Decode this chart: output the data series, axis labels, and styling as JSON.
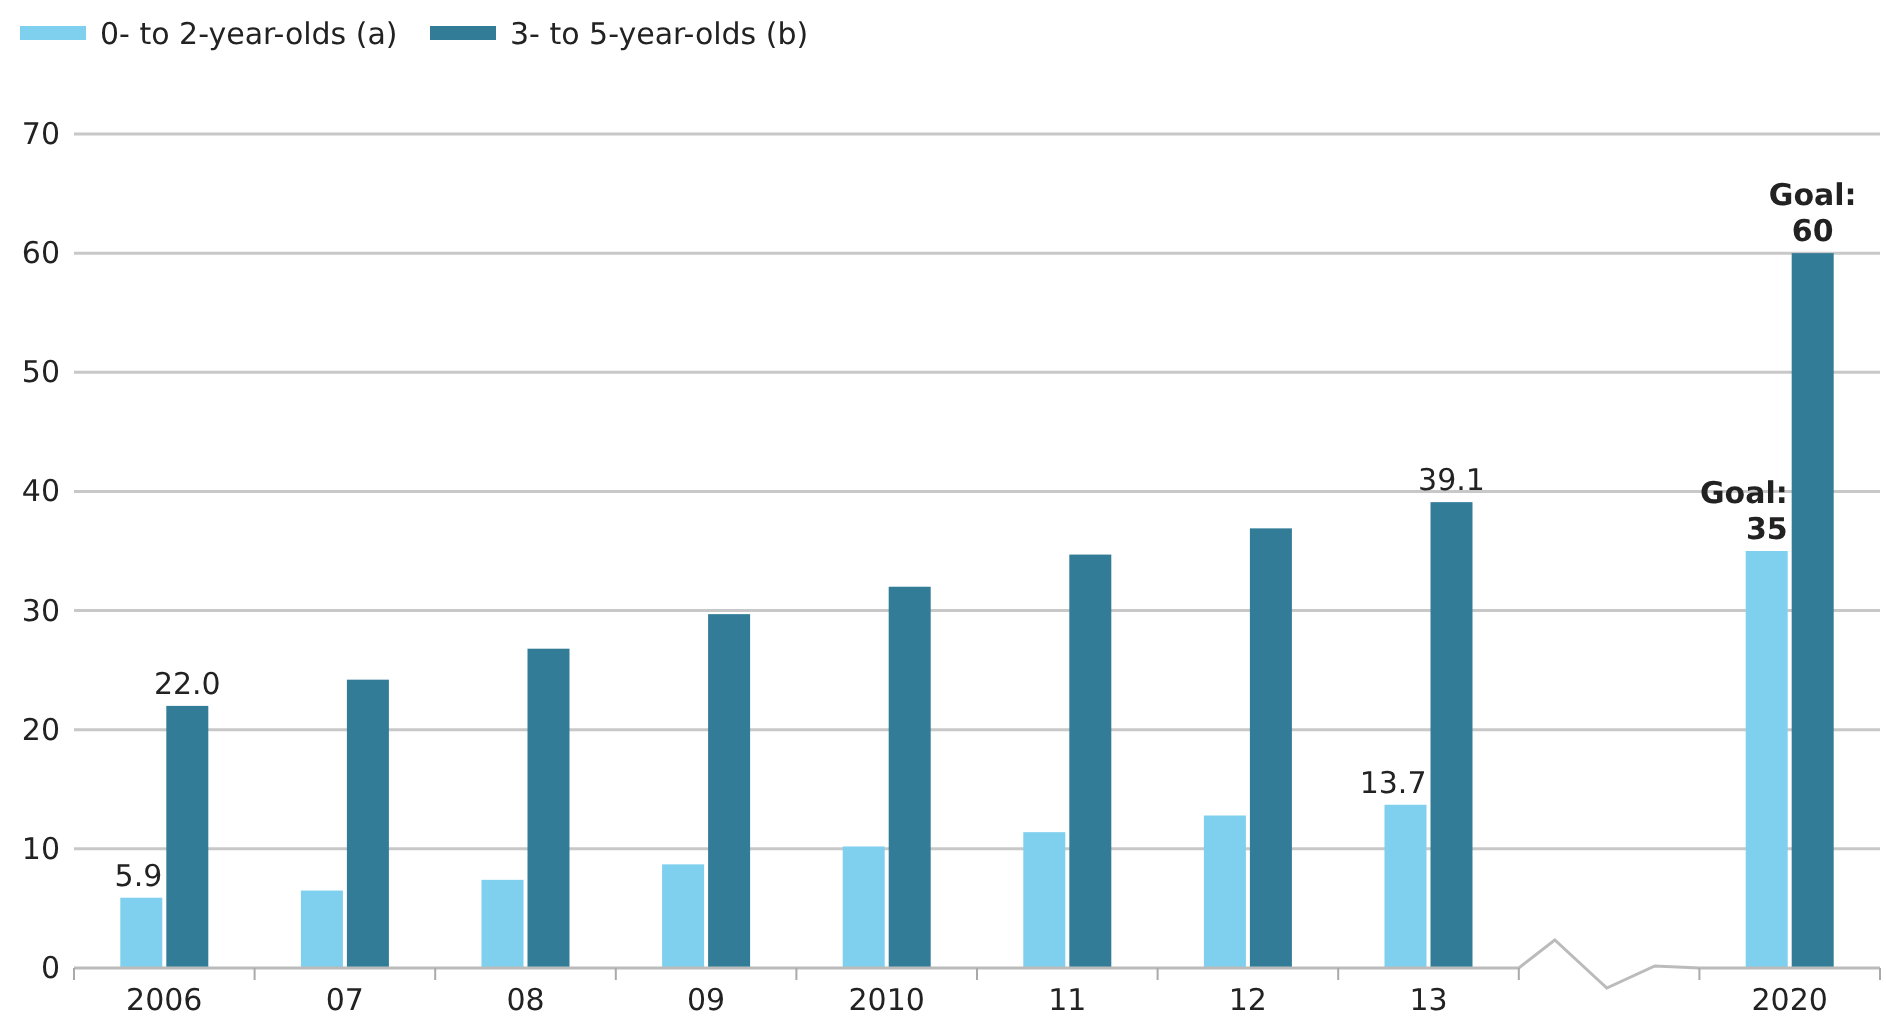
{
  "chart_data": {
    "type": "bar",
    "categories": [
      "2006",
      "07",
      "08",
      "09",
      "2010",
      "11",
      "12",
      "13",
      null,
      "2020"
    ],
    "series": [
      {
        "name": "0- to 2-year-olds (a)",
        "color": "#7fd0ee",
        "values": [
          5.9,
          6.5,
          7.4,
          8.7,
          10.2,
          11.4,
          12.8,
          13.7,
          null,
          35
        ],
        "value_labels": [
          "5.9",
          null,
          null,
          null,
          null,
          null,
          null,
          "13.7",
          null,
          "Goal: 35"
        ]
      },
      {
        "name": "3- to 5-year-olds (b)",
        "color": "#327c98",
        "values": [
          22.0,
          24.2,
          26.8,
          29.7,
          32.0,
          34.7,
          36.9,
          39.1,
          null,
          60
        ],
        "value_labels": [
          "22.0",
          null,
          null,
          null,
          null,
          null,
          null,
          "39.1",
          null,
          "Goal: 60"
        ]
      }
    ],
    "ylim": [
      0,
      70
    ],
    "yticks": [
      0,
      10,
      20,
      30,
      40,
      50,
      60,
      70
    ],
    "grid": "y",
    "legend": "top left"
  }
}
